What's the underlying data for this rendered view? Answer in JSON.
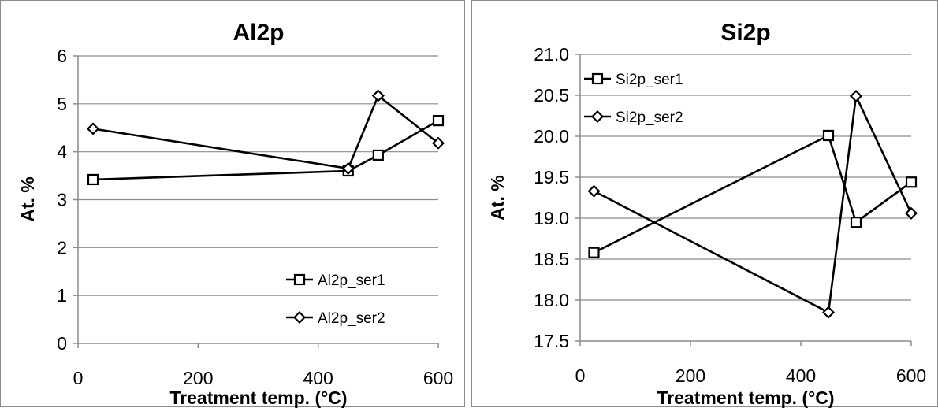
{
  "chart_data": [
    {
      "type": "line",
      "title": "Al2p",
      "xlabel": "Treatment temp. (°C)",
      "ylabel": "At. %",
      "xlim": [
        0,
        600
      ],
      "ylim": [
        0,
        6
      ],
      "xticks": [
        0,
        200,
        400,
        600
      ],
      "yticks": [
        0,
        1,
        2,
        3,
        4,
        5,
        6
      ],
      "y_tick_decimals": 0,
      "grid": "horizontal",
      "legend_position": "bottom-right",
      "series": [
        {
          "name": "Al2p_ser1",
          "marker": "square",
          "x": [
            25,
            450,
            500,
            600
          ],
          "y": [
            3.42,
            3.6,
            3.93,
            4.65
          ]
        },
        {
          "name": "Al2p_ser2",
          "marker": "diamond",
          "x": [
            25,
            450,
            500,
            600
          ],
          "y": [
            4.48,
            3.65,
            5.17,
            4.18
          ]
        }
      ]
    },
    {
      "type": "line",
      "title": "Si2p",
      "xlabel": "Treatment temp. (°C)",
      "ylabel": "At. %",
      "xlim": [
        0,
        600
      ],
      "ylim": [
        17.5,
        21.0
      ],
      "xticks": [
        0,
        200,
        400,
        600
      ],
      "yticks": [
        17.5,
        18.0,
        18.5,
        19.0,
        19.5,
        20.0,
        20.5,
        21.0
      ],
      "y_tick_decimals": 1,
      "grid": "horizontal",
      "legend_position": "top-left",
      "series": [
        {
          "name": "Si2p_ser1",
          "marker": "square",
          "x": [
            25,
            450,
            500,
            600
          ],
          "y": [
            18.58,
            20.01,
            18.95,
            19.44
          ]
        },
        {
          "name": "Si2p_ser2",
          "marker": "diamond",
          "x": [
            25,
            450,
            500,
            600
          ],
          "y": [
            19.33,
            17.85,
            20.49,
            19.06
          ]
        }
      ]
    }
  ]
}
